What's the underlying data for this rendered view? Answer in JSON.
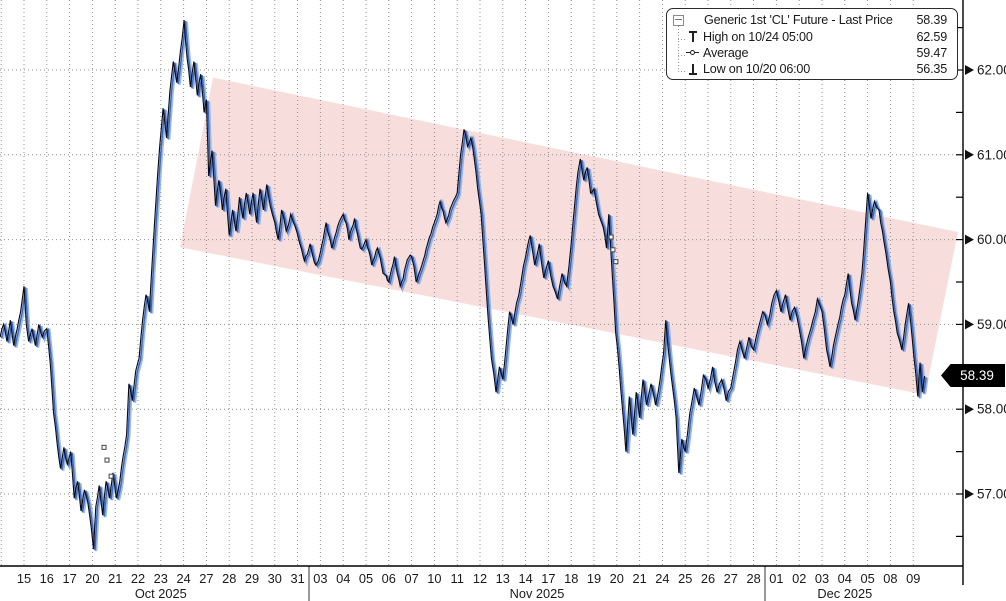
{
  "legend": {
    "rows": [
      {
        "icon": "filled-square-icon",
        "label": "Generic 1st 'CL' Future - Last Price",
        "value": "58.39"
      },
      {
        "icon": "high-marker-icon",
        "label": "High on 10/24 05:00",
        "value": "62.59"
      },
      {
        "icon": "average-marker-icon",
        "label": "Average",
        "value": "59.47"
      },
      {
        "icon": "low-marker-icon",
        "label": "Low on 10/20 06:00",
        "value": "56.35"
      }
    ]
  },
  "last_price_badge": "58.39",
  "colors": {
    "line": "#0b0b16",
    "line_echo": "#3f68ba",
    "line_echo_light": "#8fb2e2",
    "channel_fill": "#f0b4b4",
    "grid": "#8f8f8f",
    "axis": "#000000",
    "badge_bg": "#000000",
    "badge_fg": "#ffffff"
  },
  "chart_data": {
    "type": "line",
    "title": "Generic 1st 'CL' Future - Last Price",
    "stats": {
      "last": 58.39,
      "high": 62.59,
      "high_time": "10/24 05:00",
      "average": 59.47,
      "low": 56.35,
      "low_time": "10/20 06:00"
    },
    "y_axis": {
      "major_ticks": [
        62.0,
        61.0,
        60.0,
        59.0,
        58.0,
        57.0
      ],
      "minor_ticks": [
        62.5,
        61.5,
        60.5,
        59.5,
        58.5,
        57.5,
        56.5
      ],
      "range_shown": [
        56.2,
        62.8
      ],
      "gridlines": "dotted"
    },
    "x_axis": {
      "months": [
        {
          "label": "Oct 2025",
          "days": [
            "15",
            "16",
            "17",
            "20",
            "21",
            "22",
            "23",
            "24",
            "27",
            "28",
            "29",
            "30",
            "31"
          ]
        },
        {
          "label": "Nov 2025",
          "days": [
            "03",
            "04",
            "05",
            "06",
            "07",
            "10",
            "11",
            "12",
            "13",
            "14",
            "17",
            "18",
            "19",
            "20",
            "21",
            "24",
            "25",
            "26",
            "27",
            "28"
          ]
        },
        {
          "label": "Dec 2025",
          "days": [
            "01",
            "02",
            "03",
            "04",
            "05",
            "08",
            "09"
          ]
        }
      ]
    },
    "trend_channel": {
      "shape": "parallelogram",
      "corners_day_price": [
        [
          8.29,
          61.91
        ],
        [
          40.96,
          60.09
        ],
        [
          39.52,
          58.17
        ],
        [
          6.84,
          59.91
        ]
      ]
    },
    "event_markers_day_price": [
      [
        3.51,
        57.55
      ],
      [
        3.64,
        57.4
      ],
      [
        3.82,
        57.21
      ],
      [
        25.75,
        60.03
      ],
      [
        25.83,
        59.88
      ],
      [
        25.96,
        59.74
      ]
    ],
    "series": [
      {
        "name": "Generic 1st 'CL' Future - Last Price",
        "points_day_price": [
          [
            -1.05,
            58.85
          ],
          [
            -0.9,
            59.0
          ],
          [
            -0.75,
            58.8
          ],
          [
            -0.6,
            59.05
          ],
          [
            -0.45,
            58.75
          ],
          [
            -0.3,
            58.95
          ],
          [
            -0.15,
            59.15
          ],
          [
            0,
            59.45
          ],
          [
            0.1,
            59.0
          ],
          [
            0.2,
            58.8
          ],
          [
            0.35,
            58.95
          ],
          [
            0.5,
            58.75
          ],
          [
            0.65,
            59.0
          ],
          [
            0.8,
            58.85
          ],
          [
            1.0,
            58.95
          ],
          [
            1.15,
            58.55
          ],
          [
            1.3,
            57.95
          ],
          [
            1.45,
            57.6
          ],
          [
            1.6,
            57.3
          ],
          [
            1.75,
            57.55
          ],
          [
            1.9,
            57.35
          ],
          [
            2.05,
            57.5
          ],
          [
            2.2,
            56.95
          ],
          [
            2.35,
            57.15
          ],
          [
            2.5,
            56.8
          ],
          [
            2.65,
            57.05
          ],
          [
            2.8,
            56.9
          ],
          [
            2.95,
            56.6
          ],
          [
            3.05,
            56.35
          ],
          [
            3.15,
            56.85
          ],
          [
            3.3,
            57.1
          ],
          [
            3.45,
            56.75
          ],
          [
            3.6,
            57.15
          ],
          [
            3.75,
            56.95
          ],
          [
            3.9,
            57.25
          ],
          [
            4.05,
            56.95
          ],
          [
            4.2,
            57.15
          ],
          [
            4.35,
            57.45
          ],
          [
            4.5,
            57.7
          ],
          [
            4.6,
            58.3
          ],
          [
            4.75,
            58.1
          ],
          [
            4.9,
            58.45
          ],
          [
            5.05,
            58.6
          ],
          [
            5.2,
            59.05
          ],
          [
            5.35,
            59.35
          ],
          [
            5.5,
            59.15
          ],
          [
            5.65,
            59.85
          ],
          [
            5.8,
            60.5
          ],
          [
            5.95,
            61.1
          ],
          [
            6.1,
            61.55
          ],
          [
            6.25,
            61.2
          ],
          [
            6.4,
            61.75
          ],
          [
            6.55,
            62.1
          ],
          [
            6.7,
            61.85
          ],
          [
            6.85,
            62.2
          ],
          [
            7.02,
            62.59
          ],
          [
            7.15,
            62.15
          ],
          [
            7.3,
            61.8
          ],
          [
            7.45,
            62.1
          ],
          [
            7.6,
            61.7
          ],
          [
            7.75,
            61.95
          ],
          [
            7.9,
            61.5
          ],
          [
            8.0,
            61.65
          ],
          [
            8.1,
            60.75
          ],
          [
            8.25,
            61.05
          ],
          [
            8.4,
            60.4
          ],
          [
            8.55,
            60.7
          ],
          [
            8.7,
            60.35
          ],
          [
            8.85,
            60.6
          ],
          [
            9.0,
            60.05
          ],
          [
            9.15,
            60.35
          ],
          [
            9.3,
            60.1
          ],
          [
            9.45,
            60.5
          ],
          [
            9.6,
            60.25
          ],
          [
            9.75,
            60.55
          ],
          [
            9.9,
            60.3
          ],
          [
            10.05,
            60.55
          ],
          [
            10.2,
            60.2
          ],
          [
            10.35,
            60.6
          ],
          [
            10.5,
            60.35
          ],
          [
            10.65,
            60.65
          ],
          [
            10.8,
            60.4
          ],
          [
            11.0,
            60.2
          ],
          [
            11.15,
            60.0
          ],
          [
            11.3,
            60.35
          ],
          [
            11.5,
            60.1
          ],
          [
            11.7,
            60.3
          ],
          [
            11.9,
            60.15
          ],
          [
            12.05,
            60.0
          ],
          [
            12.3,
            59.75
          ],
          [
            12.55,
            59.95
          ],
          [
            12.8,
            59.7
          ],
          [
            13.0,
            59.85
          ],
          [
            13.25,
            60.2
          ],
          [
            13.5,
            59.9
          ],
          [
            13.75,
            60.15
          ],
          [
            14.0,
            60.3
          ],
          [
            14.25,
            60.0
          ],
          [
            14.5,
            60.25
          ],
          [
            14.75,
            59.9
          ],
          [
            15.0,
            60.0
          ],
          [
            15.25,
            59.7
          ],
          [
            15.5,
            59.9
          ],
          [
            15.75,
            59.6
          ],
          [
            16.0,
            59.5
          ],
          [
            16.25,
            59.8
          ],
          [
            16.5,
            59.45
          ],
          [
            16.75,
            59.7
          ],
          [
            17.0,
            59.8
          ],
          [
            17.2,
            59.5
          ],
          [
            17.45,
            59.7
          ],
          [
            17.7,
            59.95
          ],
          [
            18.0,
            60.2
          ],
          [
            18.25,
            60.45
          ],
          [
            18.5,
            60.2
          ],
          [
            18.75,
            60.4
          ],
          [
            19.0,
            60.55
          ],
          [
            19.15,
            61.0
          ],
          [
            19.3,
            61.3
          ],
          [
            19.45,
            61.1
          ],
          [
            19.6,
            61.2
          ],
          [
            19.75,
            60.95
          ],
          [
            19.9,
            60.6
          ],
          [
            20.05,
            60.3
          ],
          [
            20.2,
            59.7
          ],
          [
            20.35,
            59.1
          ],
          [
            20.5,
            58.6
          ],
          [
            20.7,
            58.2
          ],
          [
            20.85,
            58.5
          ],
          [
            21.0,
            58.35
          ],
          [
            21.15,
            58.75
          ],
          [
            21.3,
            59.15
          ],
          [
            21.45,
            59.0
          ],
          [
            21.6,
            59.25
          ],
          [
            21.8,
            59.5
          ],
          [
            22.0,
            59.8
          ],
          [
            22.2,
            60.05
          ],
          [
            22.4,
            59.7
          ],
          [
            22.6,
            59.95
          ],
          [
            22.8,
            59.55
          ],
          [
            23.0,
            59.75
          ],
          [
            23.2,
            59.45
          ],
          [
            23.4,
            59.3
          ],
          [
            23.6,
            59.6
          ],
          [
            23.8,
            59.45
          ],
          [
            24.0,
            59.95
          ],
          [
            24.15,
            60.4
          ],
          [
            24.3,
            60.8
          ],
          [
            24.4,
            60.95
          ],
          [
            24.55,
            60.7
          ],
          [
            24.7,
            60.85
          ],
          [
            24.85,
            60.55
          ],
          [
            25.0,
            60.6
          ],
          [
            25.2,
            60.3
          ],
          [
            25.4,
            60.15
          ],
          [
            25.55,
            59.9
          ],
          [
            25.65,
            60.3
          ],
          [
            25.8,
            59.6
          ],
          [
            25.95,
            58.9
          ],
          [
            26.1,
            58.5
          ],
          [
            26.25,
            58.0
          ],
          [
            26.4,
            57.5
          ],
          [
            26.55,
            58.15
          ],
          [
            26.7,
            57.7
          ],
          [
            26.85,
            58.2
          ],
          [
            27.0,
            57.9
          ],
          [
            27.15,
            58.35
          ],
          [
            27.3,
            58.05
          ],
          [
            27.5,
            58.3
          ],
          [
            27.7,
            58.05
          ],
          [
            27.9,
            58.35
          ],
          [
            28.05,
            58.65
          ],
          [
            28.15,
            59.05
          ],
          [
            28.3,
            58.6
          ],
          [
            28.45,
            58.25
          ],
          [
            28.6,
            57.9
          ],
          [
            28.72,
            57.25
          ],
          [
            28.85,
            57.65
          ],
          [
            29.0,
            57.5
          ],
          [
            29.2,
            57.95
          ],
          [
            29.4,
            58.25
          ],
          [
            29.6,
            58.05
          ],
          [
            29.8,
            58.4
          ],
          [
            30.0,
            58.25
          ],
          [
            30.2,
            58.5
          ],
          [
            30.4,
            58.2
          ],
          [
            30.6,
            58.35
          ],
          [
            30.8,
            58.1
          ],
          [
            31.0,
            58.25
          ],
          [
            31.2,
            58.55
          ],
          [
            31.4,
            58.8
          ],
          [
            31.6,
            58.6
          ],
          [
            31.8,
            58.85
          ],
          [
            32.0,
            58.7
          ],
          [
            32.2,
            58.95
          ],
          [
            32.4,
            59.15
          ],
          [
            32.6,
            59.0
          ],
          [
            32.8,
            59.25
          ],
          [
            33.0,
            59.4
          ],
          [
            33.2,
            59.15
          ],
          [
            33.4,
            59.35
          ],
          [
            33.6,
            59.05
          ],
          [
            33.8,
            59.2
          ],
          [
            34.0,
            58.95
          ],
          [
            34.2,
            58.6
          ],
          [
            34.4,
            58.85
          ],
          [
            34.6,
            59.05
          ],
          [
            34.8,
            59.3
          ],
          [
            35.0,
            59.15
          ],
          [
            35.2,
            58.7
          ],
          [
            35.35,
            58.5
          ],
          [
            35.5,
            58.75
          ],
          [
            35.7,
            59.0
          ],
          [
            35.85,
            59.2
          ],
          [
            36.0,
            59.35
          ],
          [
            36.15,
            59.6
          ],
          [
            36.3,
            59.25
          ],
          [
            36.45,
            59.05
          ],
          [
            36.6,
            59.3
          ],
          [
            36.75,
            59.6
          ],
          [
            36.9,
            60.15
          ],
          [
            37.0,
            60.55
          ],
          [
            37.15,
            60.25
          ],
          [
            37.3,
            60.45
          ],
          [
            37.5,
            60.35
          ],
          [
            37.65,
            60.1
          ],
          [
            37.8,
            59.85
          ],
          [
            38.0,
            59.5
          ],
          [
            38.15,
            59.15
          ],
          [
            38.3,
            58.9
          ],
          [
            38.5,
            58.7
          ],
          [
            38.65,
            59.0
          ],
          [
            38.8,
            59.25
          ],
          [
            38.95,
            58.85
          ],
          [
            39.1,
            58.45
          ],
          [
            39.2,
            58.15
          ],
          [
            39.3,
            58.55
          ],
          [
            39.4,
            58.2
          ],
          [
            39.5,
            58.39
          ]
        ]
      }
    ],
    "legend_position": "top-right"
  }
}
